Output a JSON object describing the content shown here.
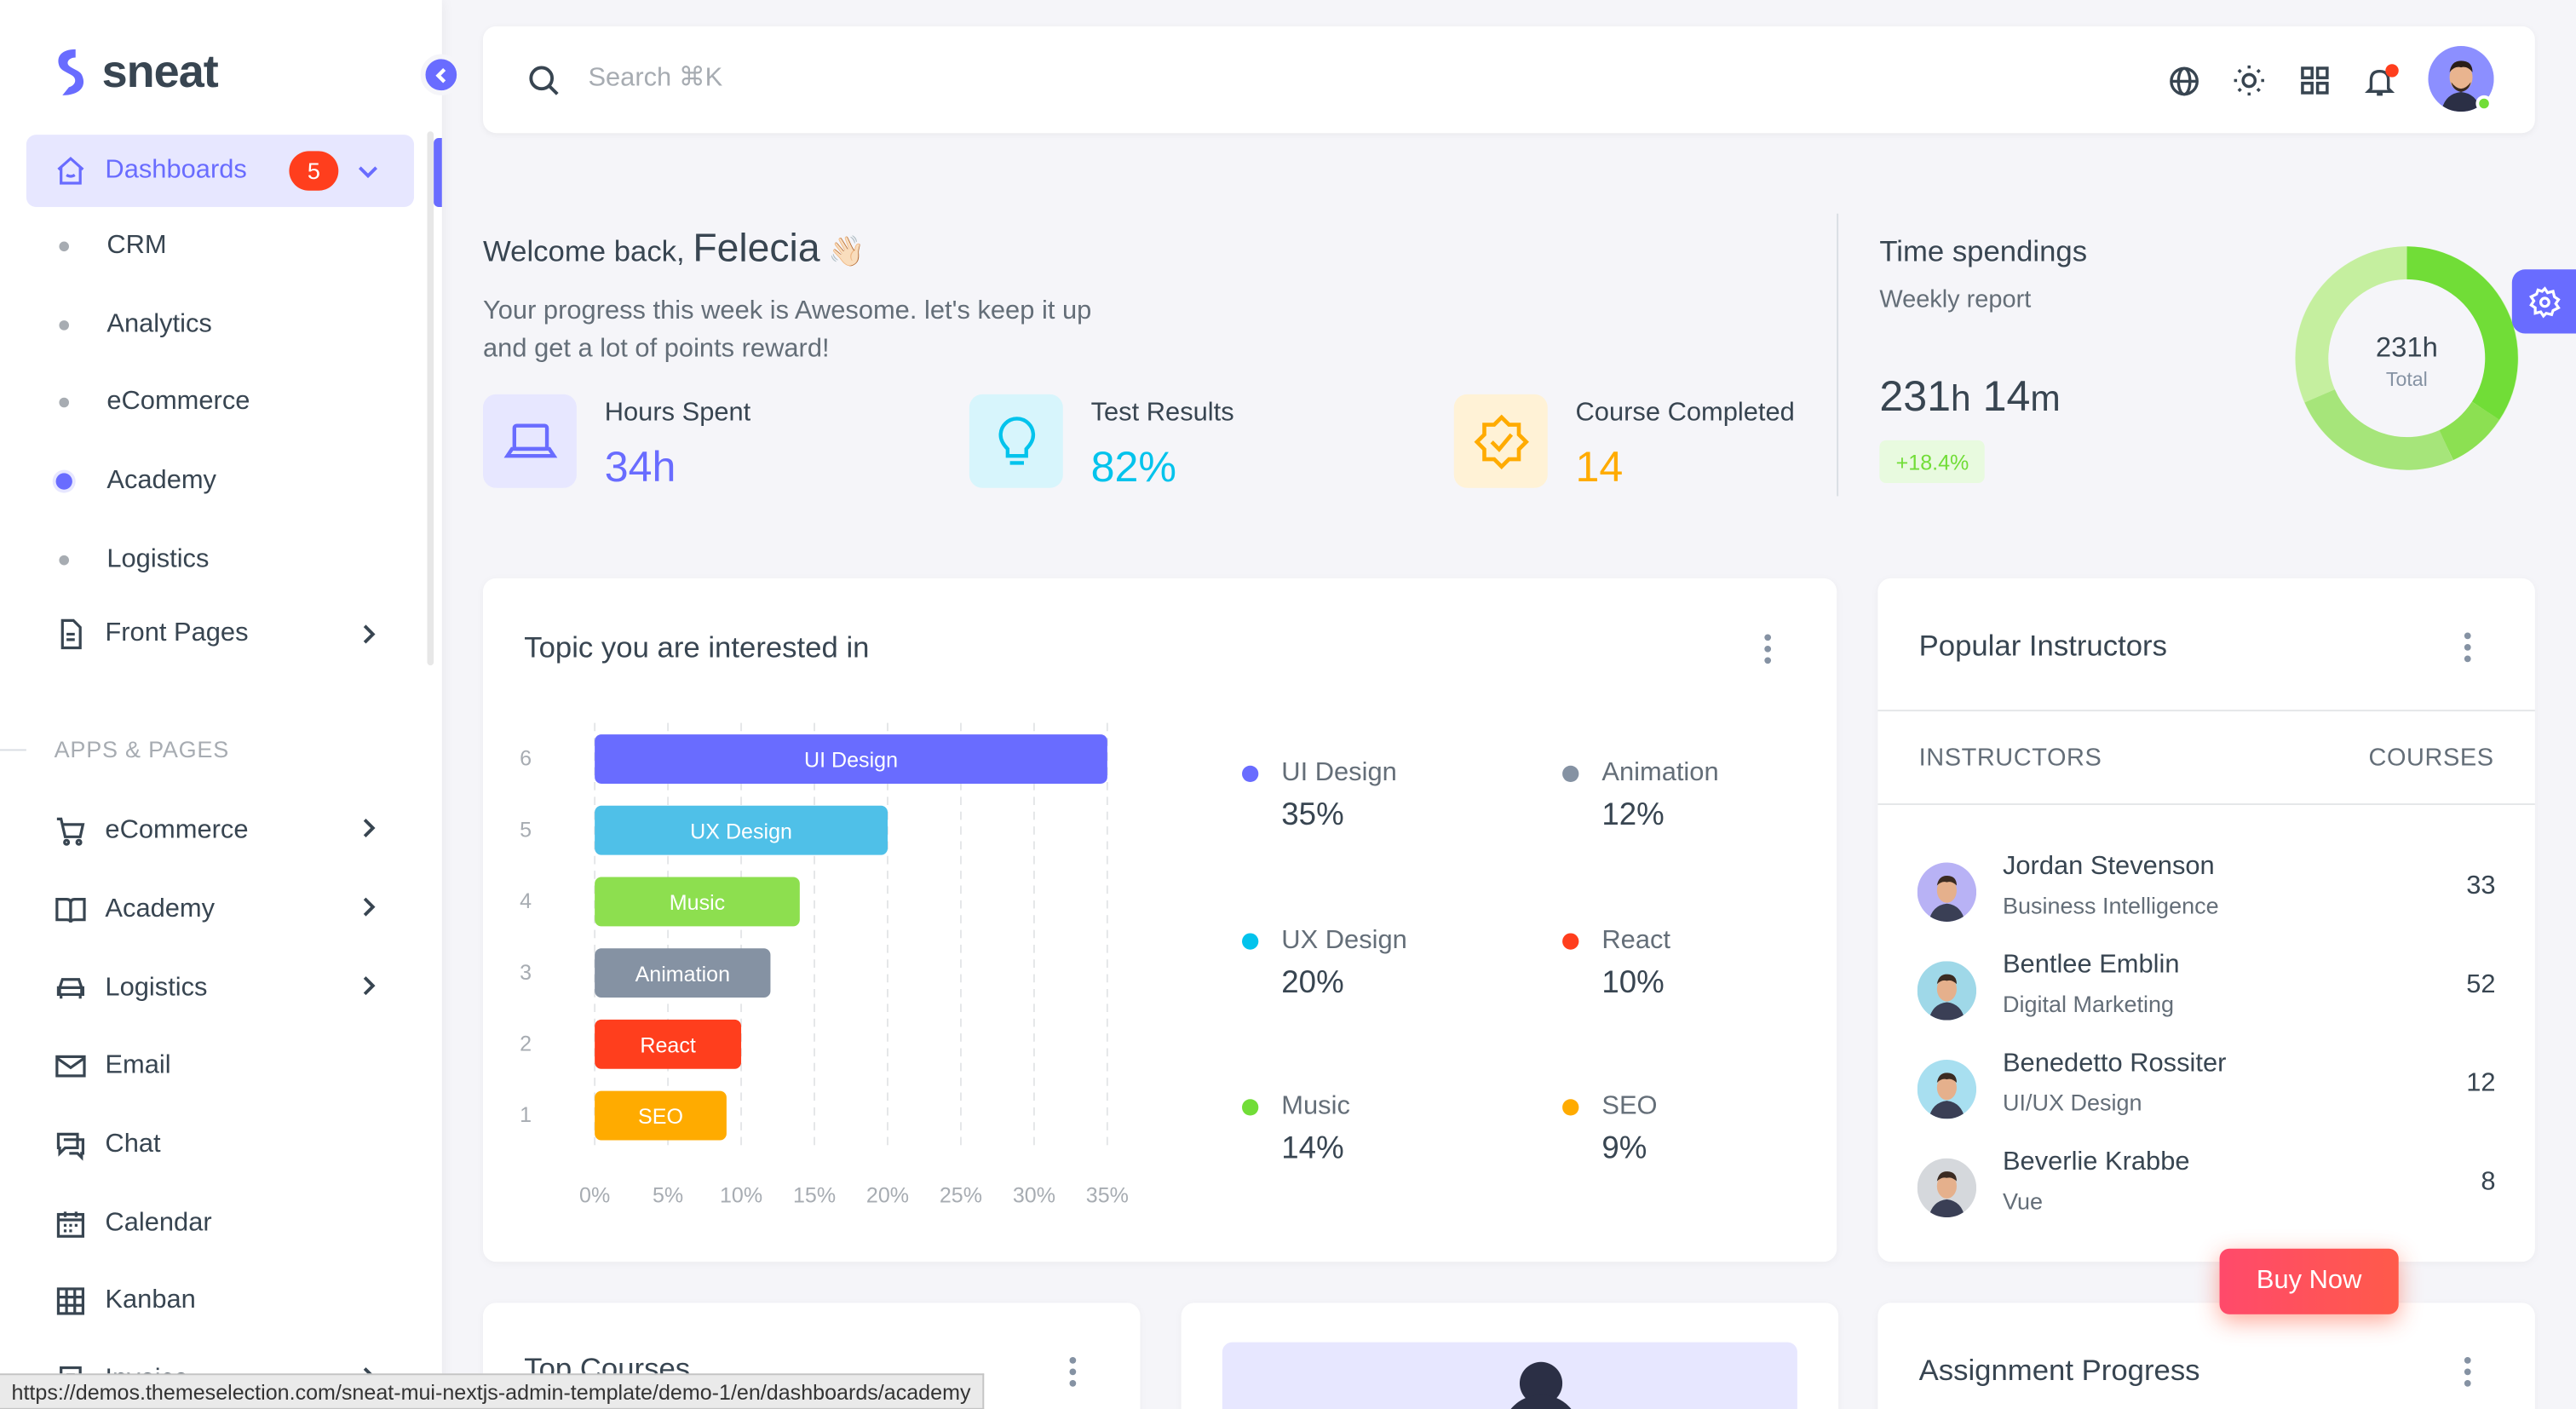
{
  "brand": {
    "name": "sneat"
  },
  "sidebar": {
    "dashboards": {
      "label": "Dashboards",
      "badge": "5"
    },
    "sub_items": [
      "CRM",
      "Analytics",
      "eCommerce",
      "Academy",
      "Logistics"
    ],
    "front_pages": "Front Pages",
    "section_title": "APPS & PAGES",
    "apps": [
      "eCommerce",
      "Academy",
      "Logistics",
      "Email",
      "Chat",
      "Calendar",
      "Kanban",
      "Invoice"
    ]
  },
  "search": {
    "placeholder": "Search ⌘K"
  },
  "welcome": {
    "greeting": "Welcome back,",
    "name": "Felecia",
    "emoji": "👋🏻",
    "subtitle": "Your progress this week is Awesome. let's keep it up and get a lot of points reward!"
  },
  "stats": [
    {
      "label": "Hours Spent",
      "value": "34h",
      "color": "#696cff",
      "icon": "laptop-icon"
    },
    {
      "label": "Test Results",
      "value": "82%",
      "color": "#03c3ec",
      "icon": "lightbulb-icon"
    },
    {
      "label": "Course Completed",
      "value": "14",
      "color": "#ffab00",
      "icon": "badge-check-icon"
    }
  ],
  "time_spendings": {
    "title": "Time spendings",
    "subtitle": "Weekly report",
    "hours": "231",
    "h_unit": "h",
    "minutes": "14",
    "m_unit": "m",
    "change": "+18.4%",
    "center_value": "231h",
    "center_label": "Total"
  },
  "topics_card": {
    "title": "Topic you are interested in"
  },
  "chart_data": {
    "type": "bar",
    "orientation": "horizontal",
    "categories": [
      "UI Design",
      "UX Design",
      "Music",
      "Animation",
      "React",
      "SEO"
    ],
    "y_ticks": [
      "6",
      "5",
      "4",
      "3",
      "2",
      "1"
    ],
    "values": [
      35,
      20,
      14,
      12,
      10,
      9
    ],
    "colors": [
      "#696cff",
      "#4fc0e8",
      "#8ddf4f",
      "#8592a3",
      "#ff3e1d",
      "#ffab00"
    ],
    "x_ticks": [
      "0%",
      "5%",
      "10%",
      "15%",
      "20%",
      "25%",
      "30%",
      "35%"
    ],
    "xlim": [
      0,
      35
    ],
    "grid": true
  },
  "legend": [
    {
      "name": "UI Design",
      "value": "35%",
      "color": "#696cff"
    },
    {
      "name": "Animation",
      "value": "12%",
      "color": "#8592a3"
    },
    {
      "name": "UX Design",
      "value": "20%",
      "color": "#03c3ec"
    },
    {
      "name": "React",
      "value": "10%",
      "color": "#ff3e1d"
    },
    {
      "name": "Music",
      "value": "14%",
      "color": "#71dd37"
    },
    {
      "name": "SEO",
      "value": "9%",
      "color": "#ffab00"
    }
  ],
  "instructors_card": {
    "title": "Popular Instructors",
    "col_instructors": "INSTRUCTORS",
    "col_courses": "COURSES",
    "rows": [
      {
        "name": "Jordan Stevenson",
        "role": "Business Intelligence",
        "courses": "33",
        "avatar_bg": "#b8b2f5"
      },
      {
        "name": "Bentlee Emblin",
        "role": "Digital Marketing",
        "courses": "52",
        "avatar_bg": "#9fd8e8"
      },
      {
        "name": "Benedetto Rossiter",
        "role": "UI/UX Design",
        "courses": "12",
        "avatar_bg": "#a8dff0"
      },
      {
        "name": "Beverlie Krabbe",
        "role": "Vue",
        "courses": "8",
        "avatar_bg": "#d5d8dc"
      }
    ]
  },
  "bottom_cards": {
    "top_courses": "Top Courses",
    "assignment": "Assignment Progress"
  },
  "buy_now": "Buy Now",
  "status_url": "https://demos.themeselection.com/sneat-mui-nextjs-admin-template/demo-1/en/dashboards/academy"
}
